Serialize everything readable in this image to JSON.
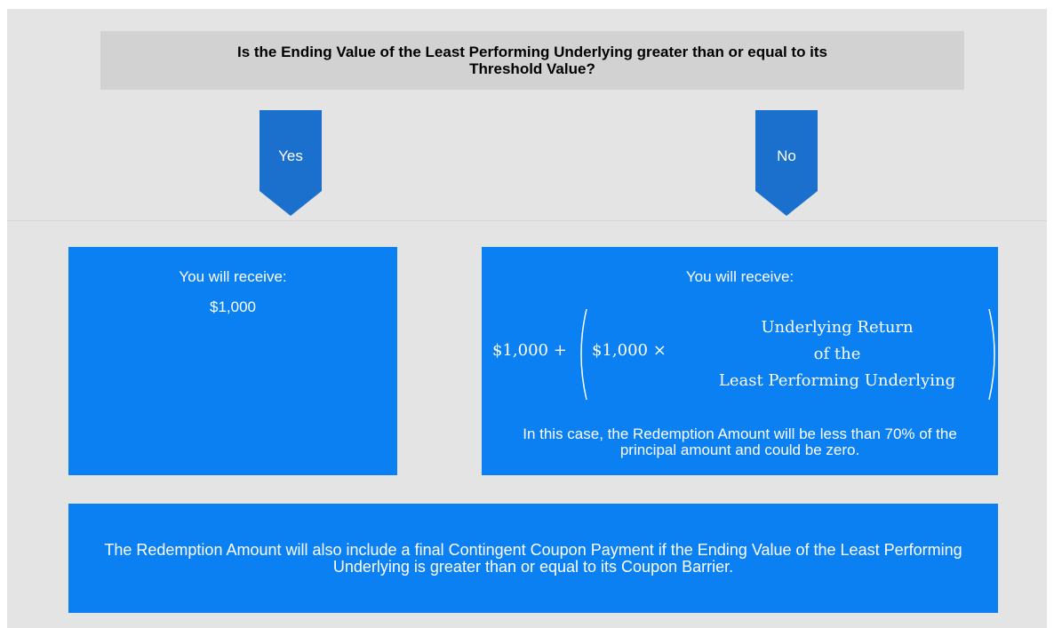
{
  "question": "Is the Ending Value of the Least Performing Underlying greater than or equal to its Threshold Value?",
  "branches": [
    {
      "label": "Yes",
      "heading": "You will receive:",
      "amount": "$1,000"
    },
    {
      "label": "No",
      "heading": "You will receive:",
      "formula": {
        "base": "$1,000 +",
        "inner": "$1,000 ×",
        "fraction": [
          "Underlying Return",
          "of the",
          "Least Performing Underlying"
        ]
      },
      "note": "In this case, the Redemption Amount will be less than 70% of the principal amount and could be zero."
    }
  ],
  "footer": "The Redemption Amount will also include a final Contingent Coupon Payment if the Ending Value of the Least Performing Underlying is greater than or equal to its Coupon Barrier."
}
